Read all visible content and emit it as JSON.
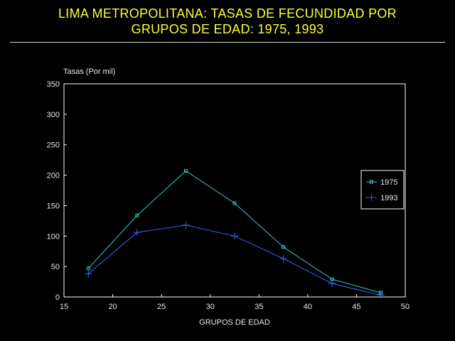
{
  "chart_data": {
    "type": "line",
    "title_lines": [
      "LIMA METROPOLITANA: TASAS DE FECUNDIDAD POR",
      "GRUPOS DE EDAD: 1975, 1993"
    ],
    "xlabel": "GRUPOS DE EDAD",
    "ylabel": "Tasas (Por mil)",
    "xlim": [
      15,
      50
    ],
    "ylim": [
      0,
      350
    ],
    "xticks": [
      15,
      20,
      25,
      30,
      35,
      40,
      45,
      50
    ],
    "yticks": [
      0,
      50,
      100,
      150,
      200,
      250,
      300,
      350
    ],
    "grid": false,
    "legend_position": "right",
    "series": [
      {
        "name": "1975",
        "color": "#33cccc",
        "marker": "square",
        "points": [
          {
            "x": 17.5,
            "y": 47
          },
          {
            "x": 22.5,
            "y": 134
          },
          {
            "x": 27.5,
            "y": 207
          },
          {
            "x": 32.5,
            "y": 154
          },
          {
            "x": 37.5,
            "y": 82
          },
          {
            "x": 42.5,
            "y": 29
          },
          {
            "x": 47.5,
            "y": 7
          }
        ]
      },
      {
        "name": "1993",
        "color": "#3366ff",
        "marker": "plus",
        "points": [
          {
            "x": 17.5,
            "y": 38
          },
          {
            "x": 22.5,
            "y": 106
          },
          {
            "x": 27.5,
            "y": 118
          },
          {
            "x": 32.5,
            "y": 100
          },
          {
            "x": 37.5,
            "y": 63
          },
          {
            "x": 42.5,
            "y": 22
          },
          {
            "x": 47.5,
            "y": 3
          }
        ]
      }
    ]
  }
}
